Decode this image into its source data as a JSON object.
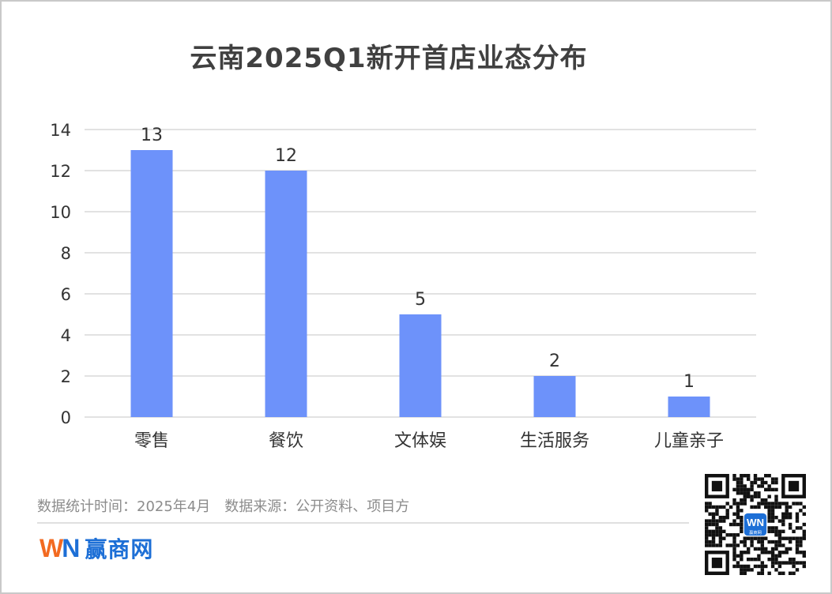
{
  "title": "云南2025Q1新开首店业态分布",
  "footnote": "数据统计时间：2025年4月　数据来源：公开资料、项目方",
  "brand": {
    "logo_w": "W",
    "logo_n": "N",
    "name": "赢商网",
    "qr_badge": "赢商网"
  },
  "colors": {
    "bar": "#6d92fa",
    "grid": "#d9d9d9",
    "text": "#333333",
    "brand_orange": "#f26a21",
    "brand_blue": "#1d6fd6"
  },
  "chart_data": {
    "type": "bar",
    "title": "云南2025Q1新开首店业态分布",
    "categories": [
      "零售",
      "餐饮",
      "文体娱",
      "生活服务",
      "儿童亲子"
    ],
    "values": [
      13,
      12,
      5,
      2,
      1
    ],
    "ylim": [
      0,
      14
    ],
    "yticks": [
      0,
      2,
      4,
      6,
      8,
      10,
      12,
      14
    ],
    "grid": true,
    "data_labels": true,
    "legend": "none"
  }
}
